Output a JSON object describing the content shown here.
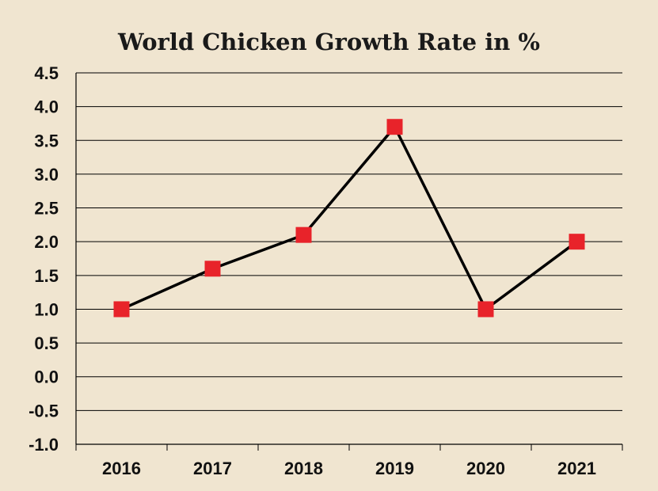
{
  "chart_data": {
    "type": "line",
    "title": "World Chicken Growth Rate in %",
    "xlabel": "",
    "ylabel": "",
    "categories": [
      "2016",
      "2017",
      "2018",
      "2019",
      "2020",
      "2021"
    ],
    "series": [
      {
        "values": [
          1.0,
          1.6,
          2.1,
          3.7,
          1.0,
          2.0
        ]
      }
    ],
    "ylim": [
      -1.0,
      4.5
    ],
    "yticks": [
      "-1.0",
      "-0.5",
      "0.0",
      "0.5",
      "1.0",
      "1.5",
      "2.0",
      "2.5",
      "3.0",
      "3.5",
      "4.0",
      "4.5"
    ],
    "grid": true,
    "legend": "none",
    "colors": {
      "line": "#000000",
      "marker": "#e8232a",
      "background": "#f0e5d0"
    }
  }
}
